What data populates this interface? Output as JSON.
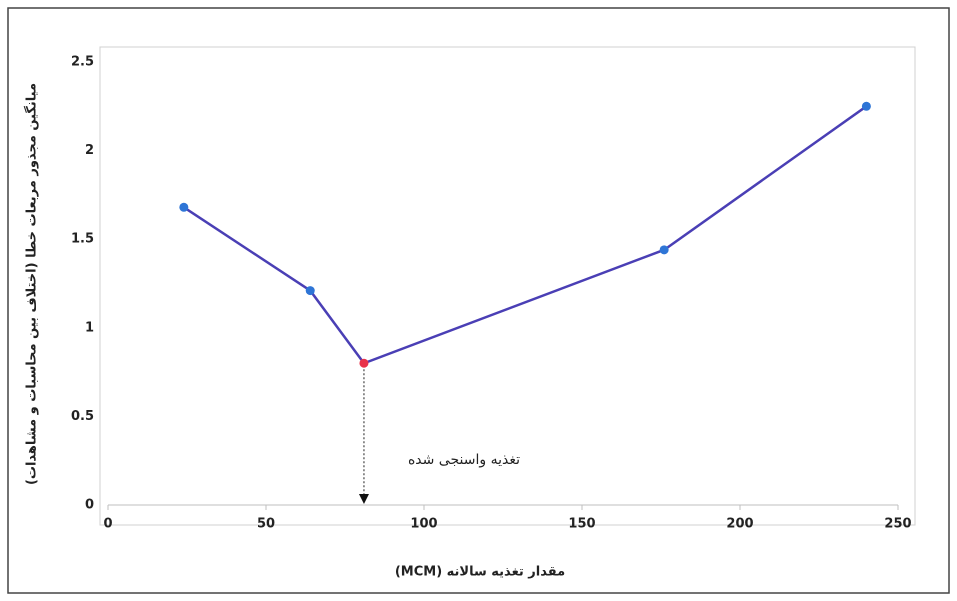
{
  "chart_data": {
    "type": "line",
    "x_label": "مقدار تغذیه سالانه (MCM)",
    "y_label": "میانگین مجذور مربعات خطا (اختلاف بین محاسبات و مشاهدات)",
    "annotation": "تغذیه واسنجی شده",
    "series": [
      {
        "color": "#4a3fb5",
        "marker_colors": [
          "#2e75d6",
          "#2e75d6",
          "#e8324a",
          "#2e75d6",
          "#2e75d6"
        ],
        "x": [
          24,
          64,
          81,
          176,
          240
        ],
        "values": [
          1.68,
          1.21,
          0.8,
          1.44,
          2.25
        ]
      }
    ],
    "xlim": [
      0,
      250
    ],
    "xticks": [
      0,
      50,
      100,
      150,
      200,
      250
    ],
    "ylim": [
      0,
      2.5
    ],
    "yticks": [
      0,
      0.5,
      1,
      1.5,
      2,
      2.5
    ],
    "grid": false
  }
}
